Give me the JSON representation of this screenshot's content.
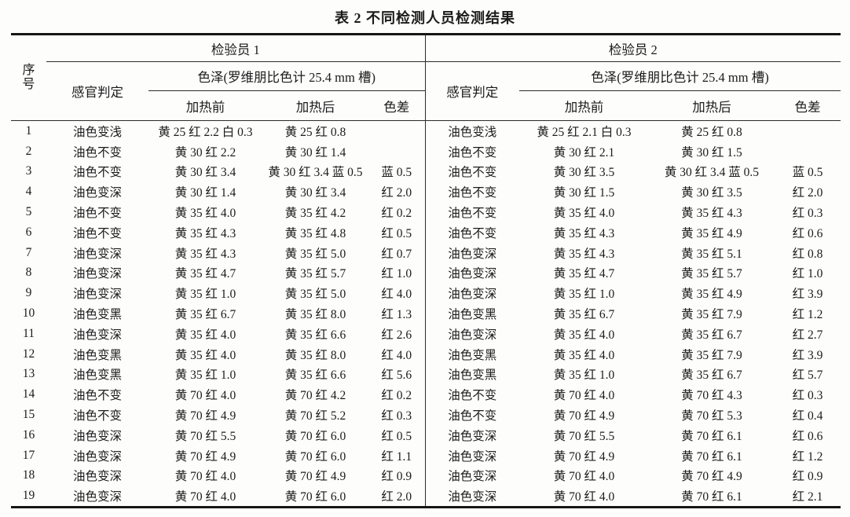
{
  "title": "表 2  不同检测人员检测结果",
  "table": {
    "inspector1_label": "检验员 1",
    "inspector2_label": "检验员 2",
    "seq_label_top": "序",
    "seq_label_bottom": "号",
    "sensory_label": "感官判定",
    "color_group_label": "色泽(罗维朋比色计 25.4 mm 槽)",
    "before_label": "加热前",
    "after_label": "加热后",
    "diff_label": "色差",
    "rows": [
      {
        "no": "1",
        "i1": {
          "sensory": "油色变浅",
          "before": "黄 25 红 2.2 白 0.3",
          "after": "黄 25 红 0.8",
          "diff": ""
        },
        "i2": {
          "sensory": "油色变浅",
          "before": "黄 25 红 2.1 白 0.3",
          "after": "黄 25 红 0.8",
          "diff": ""
        }
      },
      {
        "no": "2",
        "i1": {
          "sensory": "油色不变",
          "before": "黄 30 红 2.2",
          "after": "黄 30 红 1.4",
          "diff": ""
        },
        "i2": {
          "sensory": "油色不变",
          "before": "黄 30 红 2.1",
          "after": "黄 30 红 1.5",
          "diff": ""
        }
      },
      {
        "no": "3",
        "i1": {
          "sensory": "油色不变",
          "before": "黄 30 红 3.4",
          "after": "黄 30 红 3.4 蓝 0.5",
          "diff": "蓝 0.5"
        },
        "i2": {
          "sensory": "油色不变",
          "before": "黄 30 红 3.5",
          "after": "黄 30 红 3.4 蓝 0.5",
          "diff": "蓝 0.5"
        }
      },
      {
        "no": "4",
        "i1": {
          "sensory": "油色变深",
          "before": "黄 30 红 1.4",
          "after": "黄 30 红 3.4",
          "diff": "红 2.0"
        },
        "i2": {
          "sensory": "油色不变",
          "before": "黄 30 红 1.5",
          "after": "黄 30 红 3.5",
          "diff": "红 2.0"
        }
      },
      {
        "no": "5",
        "i1": {
          "sensory": "油色不变",
          "before": "黄 35 红 4.0",
          "after": "黄 35 红 4.2",
          "diff": "红 0.2"
        },
        "i2": {
          "sensory": "油色不变",
          "before": "黄 35 红 4.0",
          "after": "黄 35 红 4.3",
          "diff": "红 0.3"
        }
      },
      {
        "no": "6",
        "i1": {
          "sensory": "油色不变",
          "before": "黄 35 红 4.3",
          "after": "黄 35 红 4.8",
          "diff": "红 0.5"
        },
        "i2": {
          "sensory": "油色不变",
          "before": "黄 35 红 4.3",
          "after": "黄 35 红 4.9",
          "diff": "红 0.6"
        }
      },
      {
        "no": "7",
        "i1": {
          "sensory": "油色变深",
          "before": "黄 35 红 4.3",
          "after": "黄 35 红 5.0",
          "diff": "红 0.7"
        },
        "i2": {
          "sensory": "油色变深",
          "before": "黄 35 红 4.3",
          "after": "黄 35 红 5.1",
          "diff": "红 0.8"
        }
      },
      {
        "no": "8",
        "i1": {
          "sensory": "油色变深",
          "before": "黄 35 红 4.7",
          "after": "黄 35 红 5.7",
          "diff": "红 1.0"
        },
        "i2": {
          "sensory": "油色变深",
          "before": "黄 35 红 4.7",
          "after": "黄 35 红 5.7",
          "diff": "红 1.0"
        }
      },
      {
        "no": "9",
        "i1": {
          "sensory": "油色变深",
          "before": "黄 35 红 1.0",
          "after": "黄 35 红 5.0",
          "diff": "红 4.0"
        },
        "i2": {
          "sensory": "油色变深",
          "before": "黄 35 红 1.0",
          "after": "黄 35 红 4.9",
          "diff": "红 3.9"
        }
      },
      {
        "no": "10",
        "i1": {
          "sensory": "油色变黑",
          "before": "黄 35 红 6.7",
          "after": "黄 35 红 8.0",
          "diff": "红 1.3"
        },
        "i2": {
          "sensory": "油色变黑",
          "before": "黄 35 红 6.7",
          "after": "黄 35 红 7.9",
          "diff": "红 1.2"
        }
      },
      {
        "no": "11",
        "i1": {
          "sensory": "油色变深",
          "before": "黄 35 红 4.0",
          "after": "黄 35 红 6.6",
          "diff": "红 2.6"
        },
        "i2": {
          "sensory": "油色变深",
          "before": "黄 35 红 4.0",
          "after": "黄 35 红 6.7",
          "diff": "红 2.7"
        }
      },
      {
        "no": "12",
        "i1": {
          "sensory": "油色变黑",
          "before": "黄 35 红 4.0",
          "after": "黄 35 红 8.0",
          "diff": "红 4.0"
        },
        "i2": {
          "sensory": "油色变黑",
          "before": "黄 35 红 4.0",
          "after": "黄 35 红 7.9",
          "diff": "红 3.9"
        }
      },
      {
        "no": "13",
        "i1": {
          "sensory": "油色变黑",
          "before": "黄 35 红 1.0",
          "after": "黄 35 红 6.6",
          "diff": "红 5.6"
        },
        "i2": {
          "sensory": "油色变黑",
          "before": "黄 35 红 1.0",
          "after": "黄 35 红 6.7",
          "diff": "红 5.7"
        }
      },
      {
        "no": "14",
        "i1": {
          "sensory": "油色不变",
          "before": "黄 70 红 4.0",
          "after": "黄 70 红 4.2",
          "diff": "红 0.2"
        },
        "i2": {
          "sensory": "油色不变",
          "before": "黄 70 红 4.0",
          "after": "黄 70 红 4.3",
          "diff": "红 0.3"
        }
      },
      {
        "no": "15",
        "i1": {
          "sensory": "油色不变",
          "before": "黄 70 红 4.9",
          "after": "黄 70 红 5.2",
          "diff": "红 0.3"
        },
        "i2": {
          "sensory": "油色不变",
          "before": "黄 70 红 4.9",
          "after": "黄 70 红 5.3",
          "diff": "红 0.4"
        }
      },
      {
        "no": "16",
        "i1": {
          "sensory": "油色变深",
          "before": "黄 70 红 5.5",
          "after": "黄 70 红 6.0",
          "diff": "红 0.5"
        },
        "i2": {
          "sensory": "油色变深",
          "before": "黄 70 红 5.5",
          "after": "黄 70 红 6.1",
          "diff": "红 0.6"
        }
      },
      {
        "no": "17",
        "i1": {
          "sensory": "油色变深",
          "before": "黄 70 红 4.9",
          "after": "黄 70 红 6.0",
          "diff": "红 1.1"
        },
        "i2": {
          "sensory": "油色变深",
          "before": "黄 70 红 4.9",
          "after": "黄 70 红 6.1",
          "diff": "红 1.2"
        }
      },
      {
        "no": "18",
        "i1": {
          "sensory": "油色变深",
          "before": "黄 70 红 4.0",
          "after": "黄 70 红 4.9",
          "diff": "红 0.9"
        },
        "i2": {
          "sensory": "油色变深",
          "before": "黄 70 红 4.0",
          "after": "黄 70 红 4.9",
          "diff": "红 0.9"
        }
      },
      {
        "no": "19",
        "i1": {
          "sensory": "油色变深",
          "before": "黄 70 红 4.0",
          "after": "黄 70 红 6.0",
          "diff": "红 2.0"
        },
        "i2": {
          "sensory": "油色变深",
          "before": "黄 70 红 4.0",
          "after": "黄 70 红 6.1",
          "diff": "红 2.1"
        }
      }
    ]
  }
}
